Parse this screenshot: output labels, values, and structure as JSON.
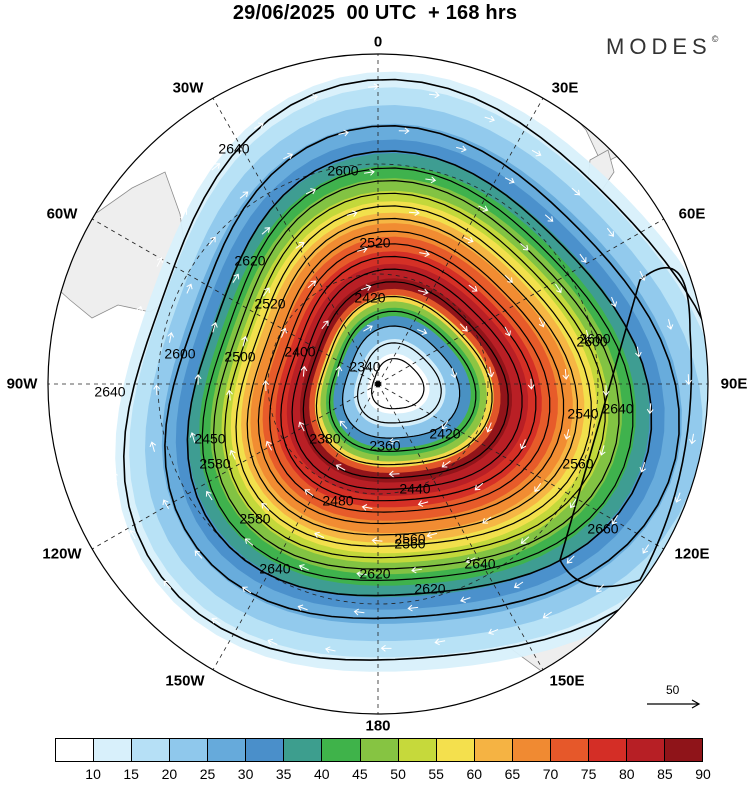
{
  "title": "29/06/2025  00 UTC  + 168 hrs",
  "brand": "MODES",
  "brand_mark": "©",
  "longitude_labels": [
    "0",
    "30E",
    "60E",
    "90E",
    "120E",
    "150E",
    "180",
    "150W",
    "120W",
    "90W",
    "60W",
    "30W"
  ],
  "contour_labels": [
    "2640",
    "2600",
    "2620",
    "2520",
    "2420",
    "2600",
    "2340",
    "2400",
    "2500",
    "2520",
    "2640",
    "2600",
    "2560",
    "2600",
    "2540",
    "2640",
    "2560",
    "2660",
    "2380",
    "2360",
    "2420",
    "2440",
    "2450",
    "2480",
    "2560",
    "2580",
    "2580",
    "2620",
    "2640",
    "2620",
    "2640"
  ],
  "reference_vector": {
    "value": "50",
    "arrow": "reference-vector-arrow"
  },
  "colorbar": {
    "labels": [
      "10",
      "15",
      "20",
      "25",
      "30",
      "35",
      "40",
      "45",
      "50",
      "55",
      "60",
      "65",
      "70",
      "75",
      "80",
      "85",
      "90"
    ],
    "colors": [
      "#ffffff",
      "#d8f0fb",
      "#b6e0f6",
      "#8fc8ec",
      "#66aadb",
      "#4a8fca",
      "#3d9e8e",
      "#3fb34a",
      "#86c442",
      "#c6d93b",
      "#f4e04d",
      "#f5b343",
      "#f08a32",
      "#e6582a",
      "#d42e26",
      "#b71f25",
      "#8f1419"
    ]
  },
  "colors": {
    "land": "#eeeeee",
    "coast": "#8c8c8c",
    "contour": "#000000",
    "wind": "#ffffff"
  }
}
